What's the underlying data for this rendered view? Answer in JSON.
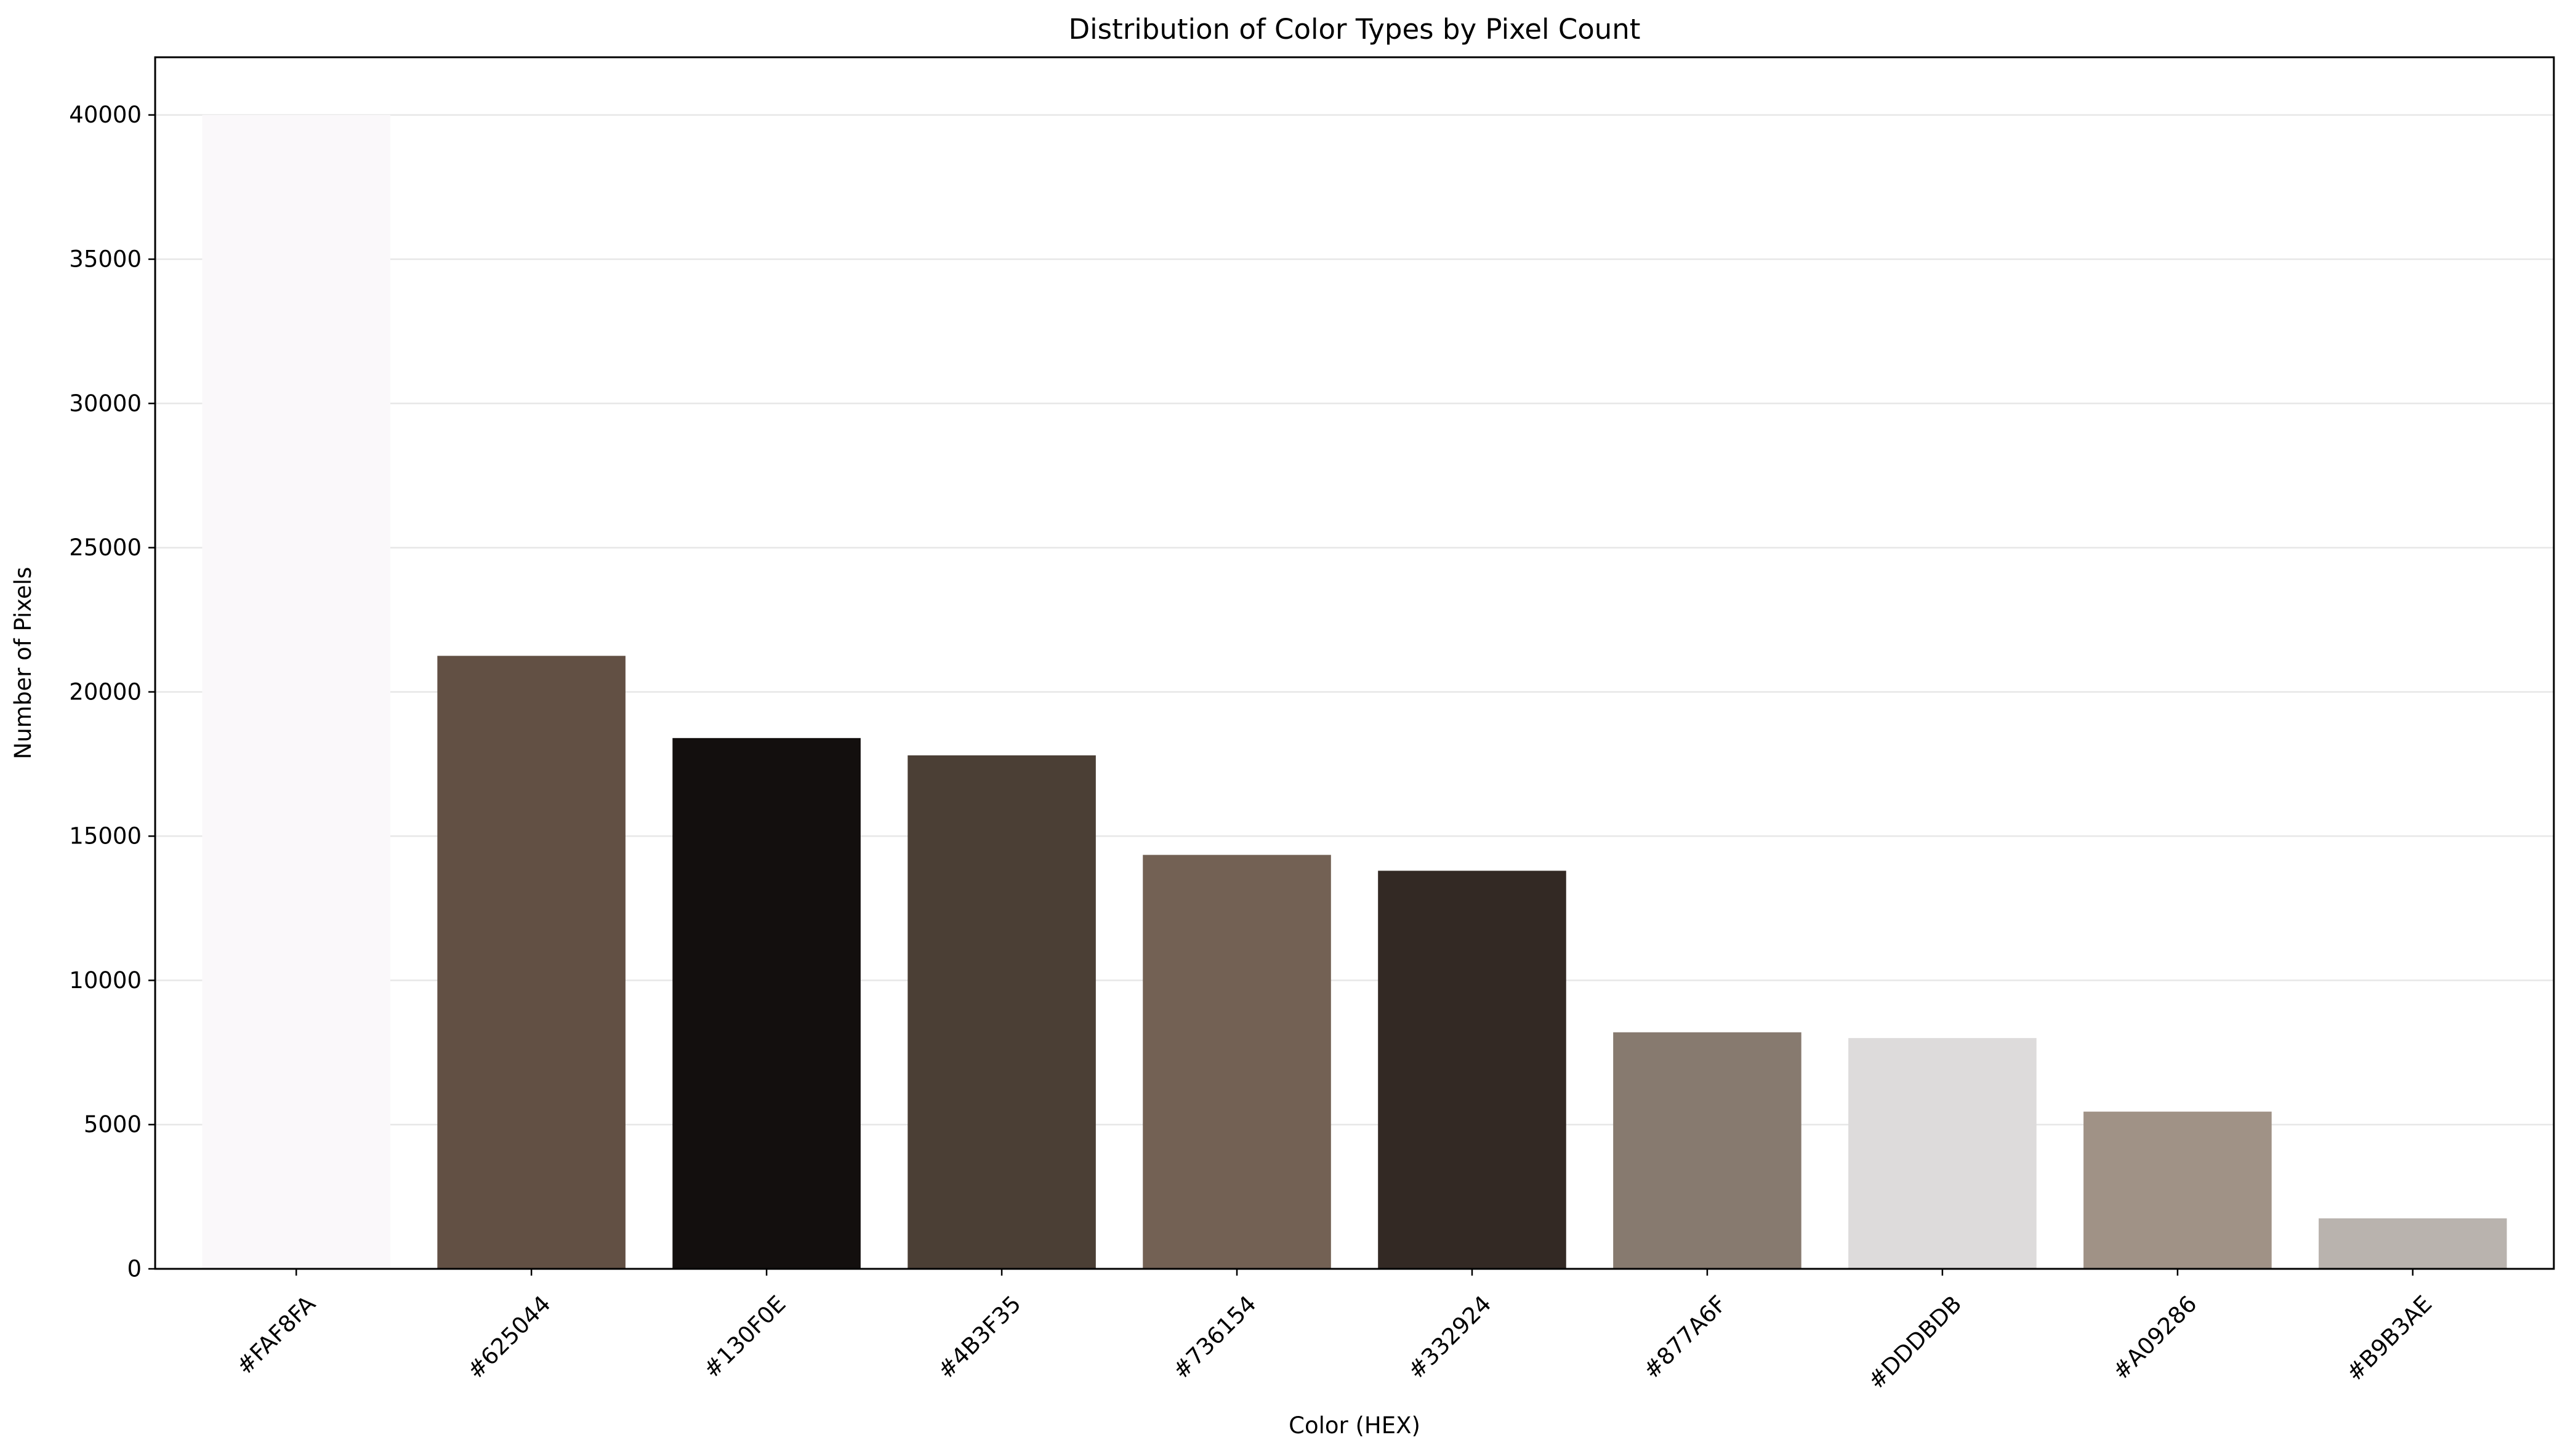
{
  "chart_data": {
    "type": "bar",
    "title": "Distribution of Color Types by Pixel Count",
    "xlabel": "Color (HEX)",
    "ylabel": "Number of Pixels",
    "categories": [
      "#FAF8FA",
      "#625044",
      "#130F0E",
      "#4B3F35",
      "#736154",
      "#332924",
      "#877A6F",
      "#DDDBDB",
      "#A09286",
      "#B9B3AE"
    ],
    "values": [
      40000,
      21250,
      18400,
      17800,
      14350,
      13800,
      8200,
      8000,
      5450,
      1750
    ],
    "colors": [
      "#FAF8FA",
      "#625044",
      "#130F0E",
      "#4B3F35",
      "#736154",
      "#332924",
      "#877A6F",
      "#DDDBDB",
      "#A09286",
      "#B9B3AE"
    ],
    "ylim": [
      0,
      42000
    ],
    "yticks": [
      0,
      5000,
      10000,
      15000,
      20000,
      25000,
      30000,
      35000,
      40000
    ],
    "grid": "y",
    "legend": "none"
  }
}
